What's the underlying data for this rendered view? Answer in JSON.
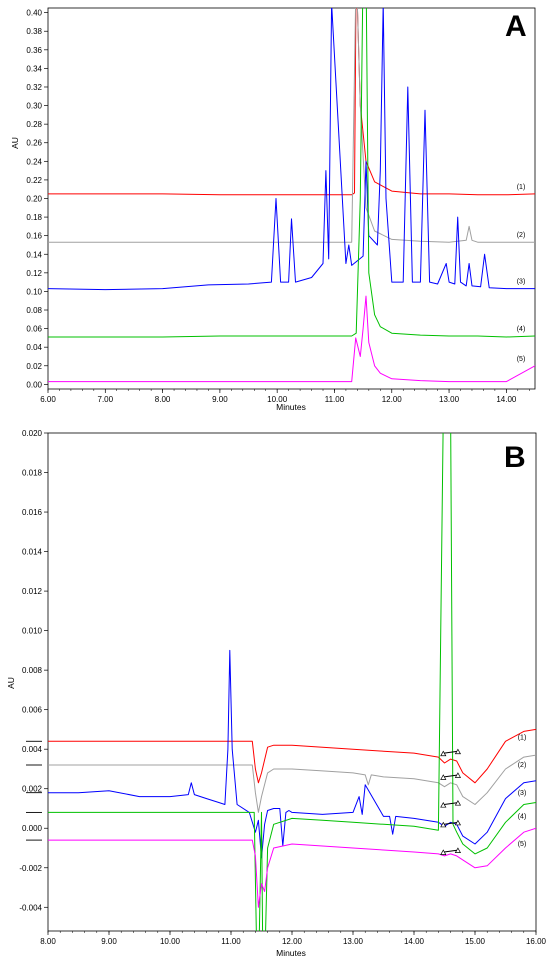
{
  "chart_data": [
    {
      "type": "line",
      "panel": "A",
      "xlabel": "Minutes",
      "ylabel": "AU",
      "xlim": [
        6.0,
        14.5
      ],
      "ylim": [
        -0.005,
        0.405
      ],
      "xticks": [
        "6.00",
        "7.00",
        "8.00",
        "9.00",
        "10.00",
        "11.00",
        "12.00",
        "13.00",
        "14.00"
      ],
      "yticks": [
        "0.00",
        "0.02",
        "0.04",
        "0.06",
        "0.08",
        "0.10",
        "0.12",
        "0.14",
        "0.16",
        "0.18",
        "0.20",
        "0.22",
        "0.24",
        "0.26",
        "0.28",
        "0.30",
        "0.32",
        "0.34",
        "0.36",
        "0.38",
        "0.40"
      ],
      "grid": false,
      "series": [
        {
          "name": "(1)",
          "color": "#ff0000",
          "x": [
            6.0,
            7.0,
            8.0,
            9.0,
            10.0,
            11.0,
            11.3,
            11.35,
            11.38,
            11.45,
            11.55,
            11.7,
            12.0,
            12.5,
            13.0,
            13.5,
            14.0,
            14.5
          ],
          "y": [
            0.205,
            0.205,
            0.205,
            0.204,
            0.204,
            0.204,
            0.204,
            0.206,
            0.45,
            0.3,
            0.24,
            0.218,
            0.208,
            0.205,
            0.205,
            0.204,
            0.204,
            0.205
          ]
        },
        {
          "name": "(2)",
          "color": "#a0a0a0",
          "x": [
            6.0,
            7.0,
            8.0,
            9.0,
            10.0,
            11.0,
            11.3,
            11.38,
            11.45,
            11.55,
            11.7,
            12.0,
            12.5,
            13.0,
            13.3,
            13.35,
            13.4,
            13.5,
            14.0,
            14.5
          ],
          "y": [
            0.153,
            0.153,
            0.153,
            0.153,
            0.153,
            0.153,
            0.153,
            0.45,
            0.3,
            0.19,
            0.165,
            0.156,
            0.154,
            0.153,
            0.155,
            0.17,
            0.155,
            0.153,
            0.153,
            0.153
          ]
        },
        {
          "name": "(3)",
          "color": "#0000ff",
          "x": [
            6.0,
            7.0,
            8.0,
            8.8,
            9.5,
            9.9,
            9.98,
            10.06,
            10.2,
            10.25,
            10.32,
            10.6,
            10.8,
            10.85,
            10.9,
            10.95,
            11.2,
            11.25,
            11.3,
            11.38,
            11.5,
            11.55,
            11.6,
            11.75,
            11.8,
            11.85,
            11.9,
            12.0,
            12.2,
            12.28,
            12.36,
            12.5,
            12.58,
            12.66,
            12.8,
            12.95,
            13.0,
            13.1,
            13.15,
            13.2,
            13.3,
            13.35,
            13.4,
            13.55,
            13.62,
            13.7,
            14.0,
            14.5
          ],
          "y": [
            0.103,
            0.102,
            0.103,
            0.107,
            0.108,
            0.11,
            0.2,
            0.11,
            0.11,
            0.178,
            0.11,
            0.115,
            0.13,
            0.23,
            0.135,
            0.41,
            0.13,
            0.15,
            0.128,
            0.132,
            0.138,
            0.24,
            0.16,
            0.15,
            0.23,
            0.41,
            0.2,
            0.11,
            0.11,
            0.32,
            0.11,
            0.11,
            0.295,
            0.11,
            0.108,
            0.13,
            0.11,
            0.108,
            0.18,
            0.11,
            0.106,
            0.13,
            0.106,
            0.105,
            0.14,
            0.104,
            0.103,
            0.103
          ]
        },
        {
          "name": "(4)",
          "color": "#00c000",
          "x": [
            6.0,
            7.0,
            8.0,
            9.0,
            10.0,
            11.0,
            11.3,
            11.38,
            11.45,
            11.5,
            11.55,
            11.6,
            11.7,
            11.8,
            12.0,
            12.5,
            13.0,
            13.5,
            14.0,
            14.5
          ],
          "y": [
            0.051,
            0.051,
            0.051,
            0.052,
            0.052,
            0.052,
            0.052,
            0.055,
            0.2,
            0.45,
            0.45,
            0.12,
            0.075,
            0.062,
            0.055,
            0.053,
            0.052,
            0.052,
            0.051,
            0.052
          ]
        },
        {
          "name": "(5)",
          "color": "#ff00ff",
          "x": [
            6.0,
            7.0,
            8.0,
            9.0,
            10.0,
            11.0,
            11.3,
            11.37,
            11.45,
            11.5,
            11.55,
            11.6,
            11.7,
            11.8,
            12.0,
            12.5,
            13.0,
            13.5,
            14.0,
            14.5
          ],
          "y": [
            0.003,
            0.003,
            0.003,
            0.003,
            0.003,
            0.003,
            0.003,
            0.05,
            0.03,
            0.06,
            0.095,
            0.045,
            0.02,
            0.012,
            0.006,
            0.004,
            0.003,
            0.003,
            0.003,
            0.02
          ]
        }
      ]
    },
    {
      "type": "line",
      "panel": "B",
      "xlabel": "Minutes",
      "ylabel": "AU",
      "xlim": [
        8.0,
        16.0
      ],
      "ylim": [
        -0.0052,
        0.02
      ],
      "xticks": [
        "8.00",
        "9.00",
        "10.00",
        "11.00",
        "12.00",
        "13.00",
        "14.00",
        "15.00",
        "16.00"
      ],
      "yticks": [
        "-0.004",
        "-0.002",
        "0.000",
        "0.002",
        "0.004",
        "0.006",
        "0.008",
        "0.010",
        "0.012",
        "0.014",
        "0.016",
        "0.018",
        "0.020"
      ],
      "grid": false,
      "series": [
        {
          "name": "(1)",
          "color": "#ff0000",
          "x": [
            8.0,
            9.0,
            10.0,
            11.0,
            11.35,
            11.4,
            11.45,
            11.5,
            11.6,
            11.7,
            12.0,
            12.5,
            13.0,
            13.5,
            14.0,
            14.4,
            14.5,
            14.6,
            14.7,
            14.8,
            15.0,
            15.2,
            15.5,
            15.8,
            16.0
          ],
          "y": [
            0.0044,
            0.0044,
            0.0044,
            0.0044,
            0.0044,
            0.003,
            0.0023,
            0.0028,
            0.0041,
            0.0042,
            0.0042,
            0.0041,
            0.004,
            0.0039,
            0.0038,
            0.0036,
            0.0033,
            0.0035,
            0.0034,
            0.0028,
            0.0023,
            0.003,
            0.0044,
            0.0049,
            0.005
          ]
        },
        {
          "name": "(2)",
          "color": "#a0a0a0",
          "x": [
            8.0,
            9.0,
            10.0,
            11.0,
            11.35,
            11.4,
            11.45,
            11.5,
            11.6,
            11.7,
            12.0,
            12.5,
            13.0,
            13.2,
            13.25,
            13.3,
            13.5,
            14.0,
            14.4,
            14.5,
            14.6,
            14.7,
            14.8,
            15.0,
            15.2,
            15.5,
            15.8,
            16.0
          ],
          "y": [
            0.0032,
            0.0032,
            0.0032,
            0.0032,
            0.0032,
            0.0018,
            0.0008,
            0.0016,
            0.0028,
            0.003,
            0.003,
            0.0029,
            0.0028,
            0.0027,
            0.0022,
            0.0027,
            0.0026,
            0.0025,
            0.0023,
            0.0021,
            0.0023,
            0.0022,
            0.0016,
            0.0012,
            0.0018,
            0.003,
            0.0036,
            0.0037
          ]
        },
        {
          "name": "(3)",
          "color": "#0000ff",
          "x": [
            8.0,
            8.5,
            9.0,
            9.5,
            10.0,
            10.3,
            10.35,
            10.4,
            10.6,
            10.8,
            10.9,
            10.95,
            10.98,
            11.02,
            11.1,
            11.3,
            11.4,
            11.45,
            11.5,
            11.55,
            11.6,
            11.7,
            11.8,
            11.85,
            11.9,
            11.95,
            12.0,
            12.5,
            13.0,
            13.1,
            13.15,
            13.2,
            13.5,
            13.6,
            13.65,
            13.7,
            14.0,
            14.4,
            14.5,
            14.6,
            14.7,
            14.8,
            15.0,
            15.2,
            15.5,
            15.8,
            16.0
          ],
          "y": [
            0.0018,
            0.0018,
            0.0019,
            0.0016,
            0.0016,
            0.0017,
            0.0023,
            0.0017,
            0.0015,
            0.0013,
            0.0012,
            0.004,
            0.009,
            0.004,
            0.0012,
            0.0008,
            -0.0002,
            0.0004,
            -0.0015,
            0.0002,
            0.0009,
            0.001,
            0.001,
            -0.0009,
            0.0008,
            0.0009,
            0.0008,
            0.0007,
            0.0008,
            0.0016,
            0.0007,
            0.0022,
            0.0006,
            0.0006,
            -0.0003,
            0.0006,
            0.0005,
            0.0003,
            0.0001,
            0.0003,
            0.0002,
            -0.0004,
            -0.0008,
            -0.0002,
            0.0015,
            0.0023,
            0.0024
          ]
        },
        {
          "name": "(4)",
          "color": "#00c000",
          "x": [
            8.0,
            9.0,
            10.0,
            11.0,
            11.3,
            11.38,
            11.42,
            11.46,
            11.5,
            11.52,
            11.56,
            11.6,
            11.7,
            12.0,
            12.5,
            13.0,
            13.5,
            14.0,
            14.4,
            14.48,
            14.52,
            14.56,
            14.6,
            14.64,
            14.7,
            14.8,
            15.0,
            15.2,
            15.5,
            15.8,
            16.0
          ],
          "y": [
            0.0008,
            0.0008,
            0.0008,
            0.0008,
            0.0008,
            0.0008,
            -0.006,
            -0.006,
            0.0008,
            -0.006,
            -0.006,
            -0.001,
            0.0002,
            0.0005,
            0.0004,
            0.0003,
            0.0002,
            0.0001,
            -0.0001,
            0.021,
            0.021,
            0.021,
            0.021,
            0.0002,
            -0.0002,
            -0.0008,
            -0.0013,
            -0.001,
            0.0003,
            0.0012,
            0.0013
          ]
        },
        {
          "name": "(5)",
          "color": "#ff00ff",
          "x": [
            8.0,
            9.0,
            10.0,
            11.0,
            11.35,
            11.4,
            11.45,
            11.5,
            11.55,
            11.6,
            11.7,
            12.0,
            12.5,
            13.0,
            13.5,
            14.0,
            14.4,
            14.5,
            14.6,
            14.7,
            14.8,
            15.0,
            15.2,
            15.5,
            15.8,
            16.0
          ],
          "y": [
            -0.0006,
            -0.0006,
            -0.0006,
            -0.0006,
            -0.0006,
            -0.0014,
            -0.004,
            -0.0028,
            -0.0032,
            -0.002,
            -0.001,
            -0.0008,
            -0.0009,
            -0.001,
            -0.0011,
            -0.0012,
            -0.0013,
            -0.0014,
            -0.0013,
            -0.0014,
            -0.0016,
            -0.002,
            -0.0019,
            -0.001,
            -0.0002,
            0.0
          ]
        }
      ]
    }
  ]
}
